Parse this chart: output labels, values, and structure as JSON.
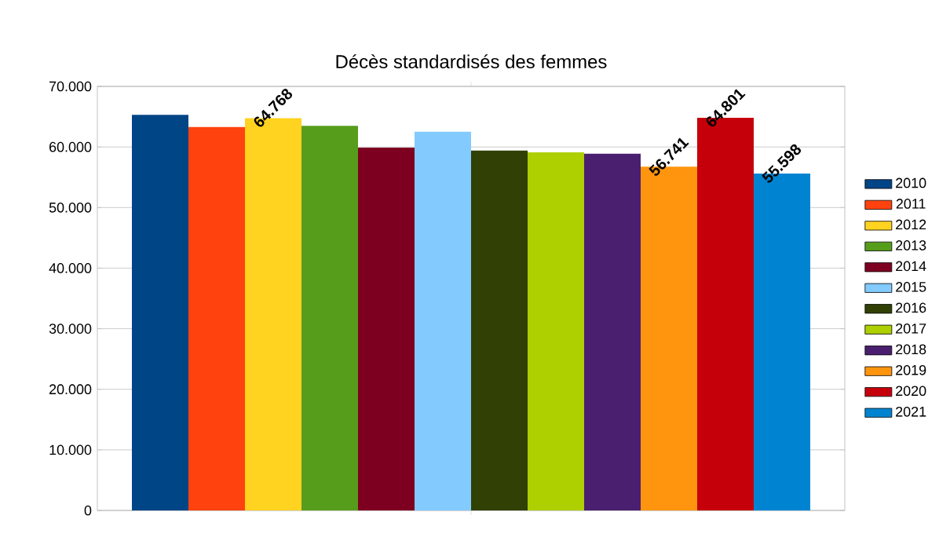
{
  "chart_data": {
    "type": "bar",
    "title": "Décès standardisés des femmes",
    "categories": [
      null
    ],
    "series": [
      {
        "name": "2010",
        "color": "#004586",
        "values": [
          65300
        ],
        "value_labels": [
          null
        ]
      },
      {
        "name": "2011",
        "color": "#ff420e",
        "values": [
          63300
        ],
        "value_labels": [
          null
        ]
      },
      {
        "name": "2012",
        "color": "#ffd320",
        "values": [
          64768
        ],
        "value_labels": [
          "64.768"
        ]
      },
      {
        "name": "2013",
        "color": "#579d1c",
        "values": [
          63500
        ],
        "value_labels": [
          null
        ]
      },
      {
        "name": "2014",
        "color": "#7e0021",
        "values": [
          59900
        ],
        "value_labels": [
          null
        ]
      },
      {
        "name": "2015",
        "color": "#83caff",
        "values": [
          62500
        ],
        "value_labels": [
          null
        ]
      },
      {
        "name": "2016",
        "color": "#314004",
        "values": [
          59400
        ],
        "value_labels": [
          null
        ]
      },
      {
        "name": "2017",
        "color": "#aecf00",
        "values": [
          59100
        ],
        "value_labels": [
          null
        ]
      },
      {
        "name": "2018",
        "color": "#4b1f6f",
        "values": [
          58900
        ],
        "value_labels": [
          null
        ]
      },
      {
        "name": "2019",
        "color": "#ff950e",
        "values": [
          56741
        ],
        "value_labels": [
          "56.741"
        ]
      },
      {
        "name": "2020",
        "color": "#c5000b",
        "values": [
          64801
        ],
        "value_labels": [
          "64.801"
        ]
      },
      {
        "name": "2021",
        "color": "#0084d1",
        "values": [
          55598
        ],
        "value_labels": [
          "55.598"
        ]
      }
    ],
    "ylim": [
      0,
      70000
    ],
    "yticks": [
      {
        "value": 0,
        "label": "0"
      },
      {
        "value": 10000,
        "label": "10.000"
      },
      {
        "value": 20000,
        "label": "20.000"
      },
      {
        "value": 30000,
        "label": "30.000"
      },
      {
        "value": 40000,
        "label": "40.000"
      },
      {
        "value": 50000,
        "label": "50.000"
      },
      {
        "value": 60000,
        "label": "60.000"
      },
      {
        "value": 70000,
        "label": "70.000"
      }
    ],
    "grid": "y",
    "legend": "right",
    "tick_labels": "y"
  }
}
